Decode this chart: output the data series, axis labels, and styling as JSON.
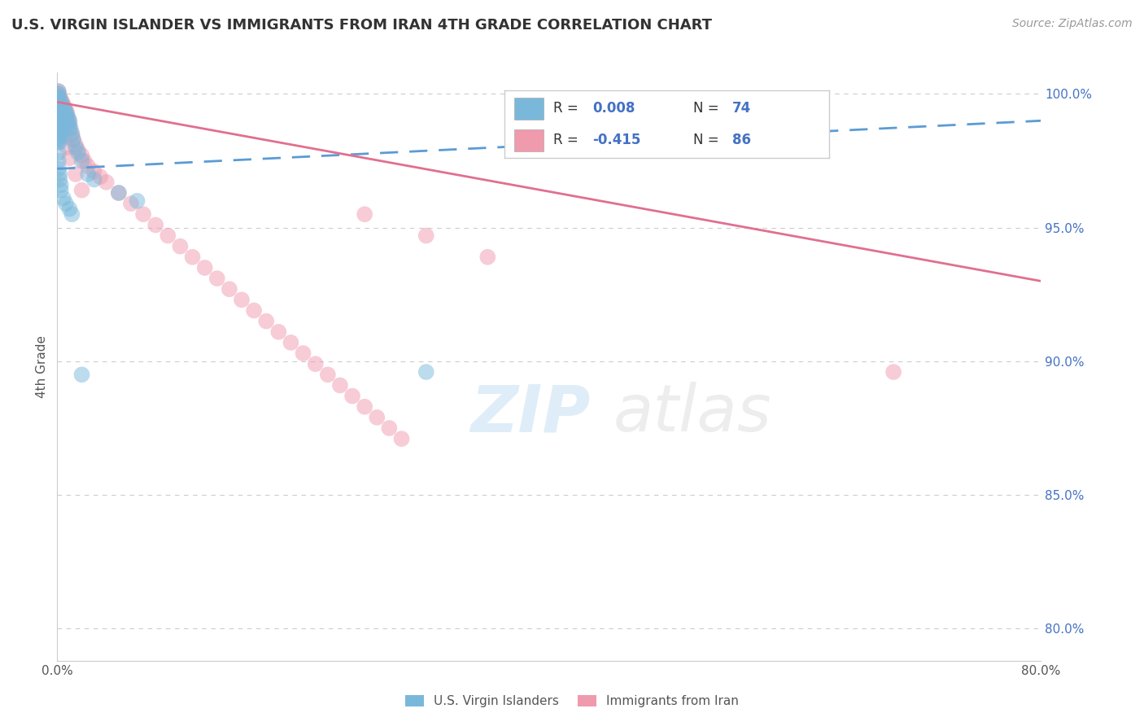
{
  "title": "U.S. VIRGIN ISLANDER VS IMMIGRANTS FROM IRAN 4TH GRADE CORRELATION CHART",
  "source": "Source: ZipAtlas.com",
  "ylabel": "4th Grade",
  "xlim": [
    0.0,
    0.8
  ],
  "ylim": [
    0.788,
    1.008
  ],
  "right_yticks": [
    0.8,
    0.85,
    0.9,
    0.95,
    1.0
  ],
  "right_yticklabels": [
    "80.0%",
    "85.0%",
    "90.0%",
    "95.0%",
    "100.0%"
  ],
  "xticks": [
    0.0,
    0.1,
    0.2,
    0.3,
    0.4,
    0.5,
    0.6,
    0.7,
    0.8
  ],
  "blue_color": "#7ab8db",
  "pink_color": "#f09aae",
  "blue_trend_color": "#5b9bd5",
  "pink_trend_color": "#e07090",
  "legend_label1": "U.S. Virgin Islanders",
  "legend_label2": "Immigrants from Iran",
  "blue_scatter_x": [
    0.001,
    0.001,
    0.001,
    0.001,
    0.001,
    0.001,
    0.001,
    0.001,
    0.001,
    0.001,
    0.001,
    0.001,
    0.001,
    0.001,
    0.001,
    0.001,
    0.001,
    0.001,
    0.001,
    0.001,
    0.002,
    0.002,
    0.002,
    0.002,
    0.002,
    0.002,
    0.002,
    0.002,
    0.002,
    0.003,
    0.003,
    0.003,
    0.003,
    0.003,
    0.004,
    0.004,
    0.004,
    0.004,
    0.005,
    0.005,
    0.005,
    0.006,
    0.006,
    0.006,
    0.007,
    0.007,
    0.008,
    0.008,
    0.009,
    0.01,
    0.01,
    0.011,
    0.012,
    0.013,
    0.015,
    0.017,
    0.02,
    0.025,
    0.03,
    0.05,
    0.065,
    0.001,
    0.001,
    0.001,
    0.002,
    0.002,
    0.003,
    0.003,
    0.005,
    0.007,
    0.01,
    0.012,
    0.3,
    0.02
  ],
  "blue_scatter_y": [
    1.001,
    1.0,
    0.999,
    0.998,
    0.997,
    0.996,
    0.995,
    0.994,
    0.993,
    0.992,
    0.991,
    0.99,
    0.989,
    0.988,
    0.987,
    0.986,
    0.985,
    0.984,
    0.983,
    0.982,
    0.998,
    0.996,
    0.994,
    0.992,
    0.99,
    0.988,
    0.986,
    0.984,
    0.982,
    0.997,
    0.994,
    0.991,
    0.988,
    0.985,
    0.996,
    0.993,
    0.99,
    0.987,
    0.995,
    0.992,
    0.989,
    0.994,
    0.991,
    0.988,
    0.993,
    0.99,
    0.992,
    0.989,
    0.991,
    0.99,
    0.988,
    0.987,
    0.985,
    0.983,
    0.98,
    0.978,
    0.975,
    0.97,
    0.968,
    0.963,
    0.96,
    0.978,
    0.975,
    0.972,
    0.97,
    0.968,
    0.966,
    0.964,
    0.961,
    0.959,
    0.957,
    0.955,
    0.896,
    0.895
  ],
  "pink_scatter_x": [
    0.001,
    0.001,
    0.001,
    0.001,
    0.001,
    0.001,
    0.001,
    0.001,
    0.001,
    0.001,
    0.002,
    0.002,
    0.002,
    0.002,
    0.002,
    0.002,
    0.003,
    0.003,
    0.003,
    0.003,
    0.003,
    0.004,
    0.004,
    0.004,
    0.005,
    0.005,
    0.005,
    0.006,
    0.006,
    0.007,
    0.007,
    0.008,
    0.008,
    0.009,
    0.01,
    0.01,
    0.012,
    0.013,
    0.015,
    0.017,
    0.02,
    0.022,
    0.025,
    0.03,
    0.035,
    0.04,
    0.05,
    0.06,
    0.07,
    0.08,
    0.09,
    0.1,
    0.11,
    0.12,
    0.13,
    0.14,
    0.15,
    0.16,
    0.17,
    0.18,
    0.19,
    0.2,
    0.21,
    0.22,
    0.23,
    0.24,
    0.25,
    0.26,
    0.27,
    0.28,
    0.001,
    0.001,
    0.001,
    0.002,
    0.003,
    0.004,
    0.005,
    0.006,
    0.008,
    0.01,
    0.015,
    0.02,
    0.25,
    0.3,
    0.35,
    0.68
  ],
  "pink_scatter_y": [
    1.001,
    1.0,
    0.999,
    0.998,
    0.997,
    0.996,
    0.995,
    0.994,
    0.993,
    0.992,
    0.999,
    0.997,
    0.995,
    0.993,
    0.991,
    0.989,
    0.998,
    0.996,
    0.994,
    0.992,
    0.99,
    0.997,
    0.995,
    0.993,
    0.996,
    0.994,
    0.992,
    0.995,
    0.993,
    0.994,
    0.992,
    0.993,
    0.991,
    0.99,
    0.989,
    0.987,
    0.985,
    0.983,
    0.981,
    0.979,
    0.977,
    0.975,
    0.973,
    0.971,
    0.969,
    0.967,
    0.963,
    0.959,
    0.955,
    0.951,
    0.947,
    0.943,
    0.939,
    0.935,
    0.931,
    0.927,
    0.923,
    0.919,
    0.915,
    0.911,
    0.907,
    0.903,
    0.899,
    0.895,
    0.891,
    0.887,
    0.883,
    0.879,
    0.875,
    0.871,
    0.998,
    0.996,
    0.994,
    0.992,
    0.99,
    0.988,
    0.986,
    0.984,
    0.98,
    0.976,
    0.97,
    0.964,
    0.955,
    0.947,
    0.939,
    0.896
  ],
  "blue_trend_x": [
    0.0,
    0.8
  ],
  "blue_trend_y": [
    0.972,
    0.99
  ],
  "pink_trend_x": [
    0.0,
    0.8
  ],
  "pink_trend_y": [
    0.997,
    0.93
  ],
  "grid_color": "#cccccc",
  "grid_dashes": [
    5,
    5
  ]
}
